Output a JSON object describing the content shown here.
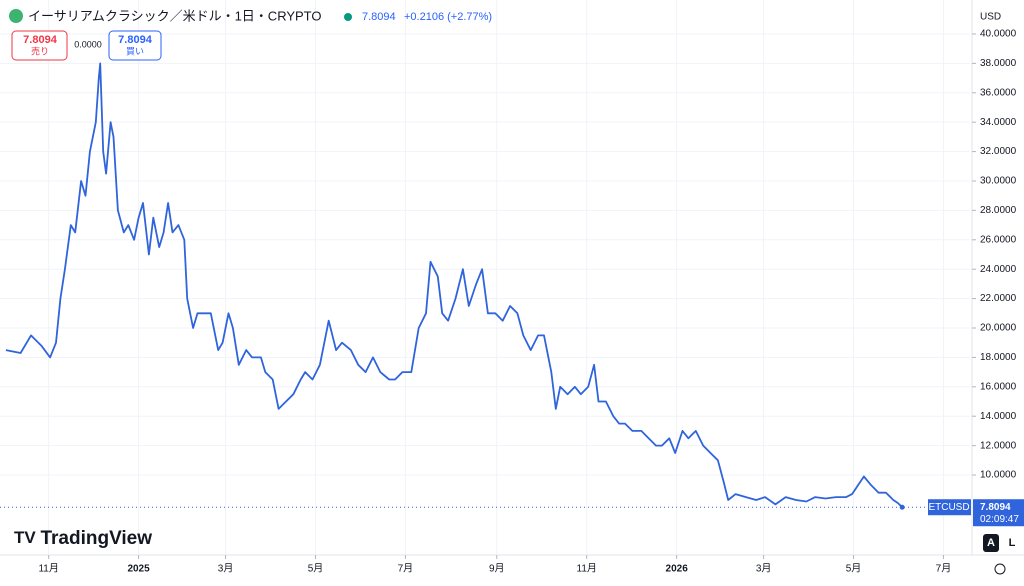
{
  "chart_data": {
    "type": "line",
    "title": "イーサリアムクラシック／米ドル・1日・CRYPTO",
    "last_price": 7.8094,
    "change": "+0.2106 (+2.77%)",
    "bid": 7.8094,
    "bid_label": "売り",
    "spread": "0.0000",
    "ask": 7.8094,
    "ask_label": "買い",
    "currency": "USD",
    "symbol": "ETCUSD",
    "countdown": "02:09:47",
    "brand": "TradingView",
    "buttons": [
      "A",
      "L"
    ],
    "grid": true,
    "xlim": [
      -94,
      564
    ],
    "ylim": [
      4.56,
      40.27
    ],
    "xticks": [
      {
        "value": -61,
        "label": "11月"
      },
      {
        "value": 0,
        "label": "2025"
      },
      {
        "value": 59,
        "label": "3月"
      },
      {
        "value": 120,
        "label": "5月"
      },
      {
        "value": 181,
        "label": "7月"
      },
      {
        "value": 243,
        "label": "9月"
      },
      {
        "value": 304,
        "label": "11月"
      },
      {
        "value": 365,
        "label": "2026"
      },
      {
        "value": 424,
        "label": "3月"
      },
      {
        "value": 485,
        "label": "5月"
      },
      {
        "value": 546,
        "label": "7月"
      }
    ],
    "yticks": [
      {
        "value": 10,
        "label": "10.0000"
      },
      {
        "value": 12,
        "label": "12.0000"
      },
      {
        "value": 14,
        "label": "14.0000"
      },
      {
        "value": 16,
        "label": "16.0000"
      },
      {
        "value": 18,
        "label": "18.0000"
      },
      {
        "value": 20,
        "label": "20.0000"
      },
      {
        "value": 22,
        "label": "22.0000"
      },
      {
        "value": 24,
        "label": "24.0000"
      },
      {
        "value": 26,
        "label": "26.0000"
      },
      {
        "value": 28,
        "label": "28.0000"
      },
      {
        "value": 30,
        "label": "30.0000"
      },
      {
        "value": 32,
        "label": "32.0000"
      },
      {
        "value": 34,
        "label": "34.0000"
      },
      {
        "value": 36,
        "label": "36.0000"
      },
      {
        "value": 38,
        "label": "38.0000"
      },
      {
        "value": 40,
        "label": "40.0000"
      }
    ],
    "series": [
      {
        "name": "ETCUSD",
        "color": "#2f64dc",
        "x": [
          -90,
          -80,
          -73,
          -66,
          -60,
          -56,
          -53,
          -50,
          -46,
          -43,
          -39,
          -36,
          -33,
          -29,
          -27,
          -26,
          -24,
          -22,
          -19,
          -17,
          -14,
          -10,
          -7,
          -3,
          0,
          3,
          7,
          10,
          14,
          17,
          20,
          23,
          27,
          31,
          33,
          37,
          40,
          44,
          49,
          54,
          57,
          61,
          64,
          68,
          73,
          77,
          83,
          86,
          91,
          95,
          100,
          105,
          110,
          113,
          118,
          123,
          129,
          134,
          138,
          144,
          149,
          154,
          159,
          164,
          170,
          174,
          179,
          185,
          190,
          195,
          198,
          203,
          206,
          210,
          215,
          220,
          224,
          229,
          233,
          237,
          242,
          247,
          252,
          257,
          261,
          266,
          271,
          275,
          280,
          283,
          286,
          291,
          296,
          300,
          305,
          309,
          312,
          317,
          322,
          326,
          330,
          335,
          341,
          346,
          351,
          355,
          360,
          364,
          369,
          373,
          378,
          383,
          388,
          393,
          397,
          400,
          405,
          412,
          419,
          425,
          432,
          439,
          446,
          453,
          459,
          466,
          473,
          480,
          484,
          488,
          492,
          497,
          502,
          507,
          512,
          515,
          518
        ],
        "values": [
          18.5,
          18.3,
          19.5,
          18.8,
          18.0,
          19,
          22,
          24,
          27,
          26.5,
          30,
          29,
          32,
          34,
          37,
          38,
          32,
          30.5,
          34,
          33,
          28,
          26.5,
          27,
          26,
          27.5,
          28.5,
          25,
          27.5,
          25.5,
          26.5,
          28.5,
          26.5,
          27,
          26,
          22,
          20,
          21,
          21,
          21,
          18.5,
          19,
          21,
          20,
          17.5,
          18.5,
          18,
          18,
          17,
          16.5,
          14.5,
          15,
          15.5,
          16.5,
          17,
          16.5,
          17.5,
          20.5,
          18.5,
          19,
          18.5,
          17.5,
          17,
          18,
          17,
          16.5,
          16.5,
          17,
          17,
          20,
          21,
          24.5,
          23.5,
          21,
          20.5,
          22,
          24,
          21.5,
          23,
          24,
          21,
          21,
          20.5,
          21.5,
          21,
          19.5,
          18.5,
          19.5,
          19.5,
          17,
          14.5,
          16,
          15.5,
          16,
          15.5,
          16,
          17.5,
          15,
          15,
          14,
          13.5,
          13.5,
          13,
          13,
          12.5,
          12,
          12,
          12.5,
          11.5,
          13,
          12.5,
          13,
          12,
          11.5,
          11,
          9.5,
          8.3,
          8.7,
          8.5,
          8.3,
          8.5,
          8.0,
          8.5,
          8.3,
          8.2,
          8.5,
          8.4,
          8.5,
          8.5,
          8.7,
          9.3,
          9.9,
          9.3,
          8.8,
          8.8,
          8.3,
          8.1,
          7.8094
        ]
      }
    ]
  }
}
